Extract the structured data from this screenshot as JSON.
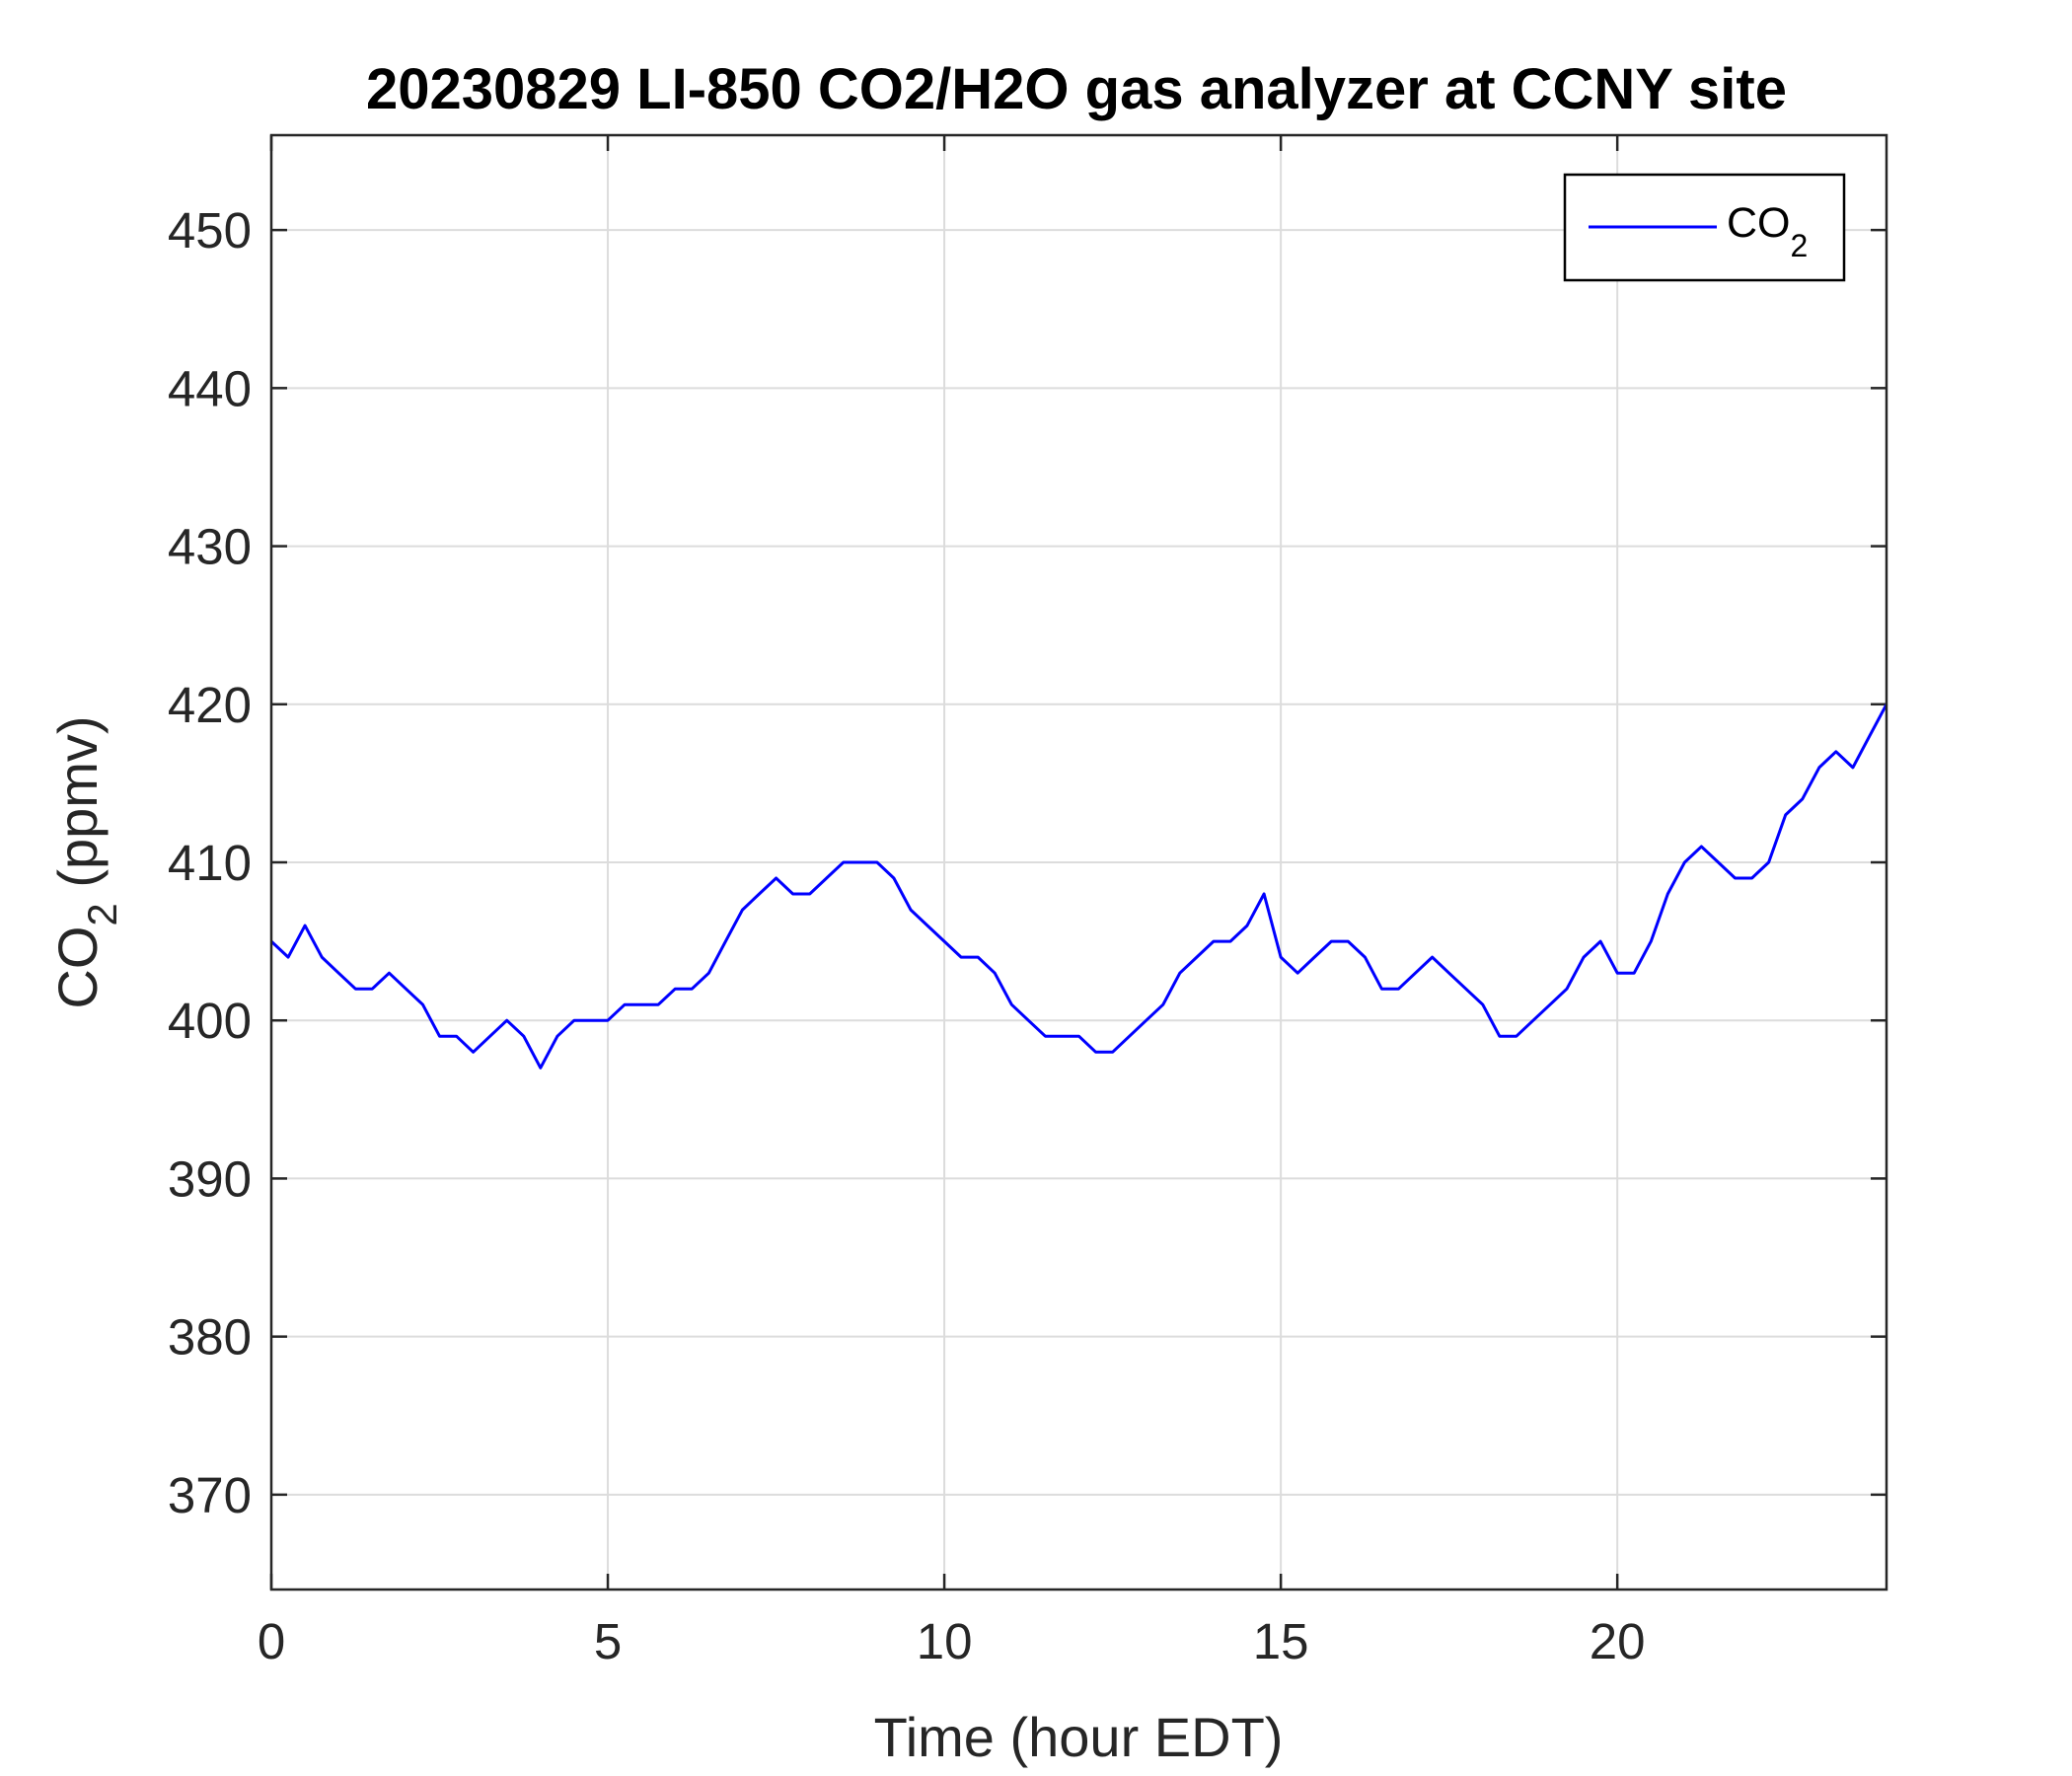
{
  "chart_data": {
    "type": "line",
    "title": "20230829 LI-850 CO2/H2O gas analyzer at CCNY site",
    "xlabel": "Time (hour EDT)",
    "ylabel": {
      "main": "CO",
      "sub": "2",
      "rest": " (ppmv)"
    },
    "xlim": [
      0,
      24
    ],
    "ylim": [
      364,
      456
    ],
    "xticks": [
      0,
      5,
      10,
      15,
      20
    ],
    "yticks": [
      370,
      380,
      390,
      400,
      410,
      420,
      430,
      440,
      450
    ],
    "grid": true,
    "legend_position": "top-right",
    "series": [
      {
        "name": {
          "main": "CO",
          "sub": "2"
        },
        "color": "#0000ff",
        "x": [
          0,
          0.25,
          0.5,
          0.75,
          1,
          1.25,
          1.5,
          1.75,
          2,
          2.25,
          2.5,
          2.75,
          3,
          3.25,
          3.5,
          3.75,
          4,
          4.25,
          4.5,
          4.75,
          5,
          5.25,
          5.5,
          5.75,
          6,
          6.25,
          6.5,
          6.75,
          7,
          7.25,
          7.5,
          7.75,
          8,
          8.25,
          8.5,
          8.75,
          9,
          9.25,
          9.5,
          9.75,
          10,
          10.25,
          10.5,
          10.75,
          11,
          11.25,
          11.5,
          11.75,
          12,
          12.25,
          12.5,
          12.75,
          13,
          13.25,
          13.5,
          13.75,
          14,
          14.25,
          14.5,
          14.75,
          15,
          15.25,
          15.5,
          15.75,
          16,
          16.25,
          16.5,
          16.75,
          17,
          17.25,
          17.5,
          17.75,
          18,
          18.25,
          18.5,
          18.75,
          19,
          19.25,
          19.5,
          19.75,
          20,
          20.25,
          20.5,
          20.75,
          21,
          21.25,
          21.5,
          21.75,
          22,
          22.25,
          22.5,
          22.75,
          23,
          23.25,
          23.5,
          23.75,
          24
        ],
        "values": [
          405,
          404,
          406,
          404,
          403,
          402,
          402,
          403,
          402,
          401,
          399,
          399,
          398,
          399,
          400,
          399,
          397,
          399,
          400,
          400,
          400,
          401,
          401,
          401,
          402,
          402,
          403,
          405,
          407,
          408,
          409,
          408,
          408,
          409,
          410,
          410,
          410,
          409,
          407,
          406,
          405,
          404,
          404,
          403,
          401,
          400,
          399,
          399,
          399,
          398,
          398,
          399,
          400,
          401,
          403,
          404,
          405,
          405,
          406,
          408,
          404,
          403,
          404,
          405,
          405,
          404,
          402,
          402,
          403,
          404,
          403,
          402,
          401,
          399,
          399,
          400,
          401,
          402,
          404,
          405,
          403,
          403,
          405,
          408,
          410,
          411,
          410,
          409,
          409,
          410,
          413,
          414,
          416,
          417,
          416,
          418,
          420
        ]
      }
    ]
  }
}
